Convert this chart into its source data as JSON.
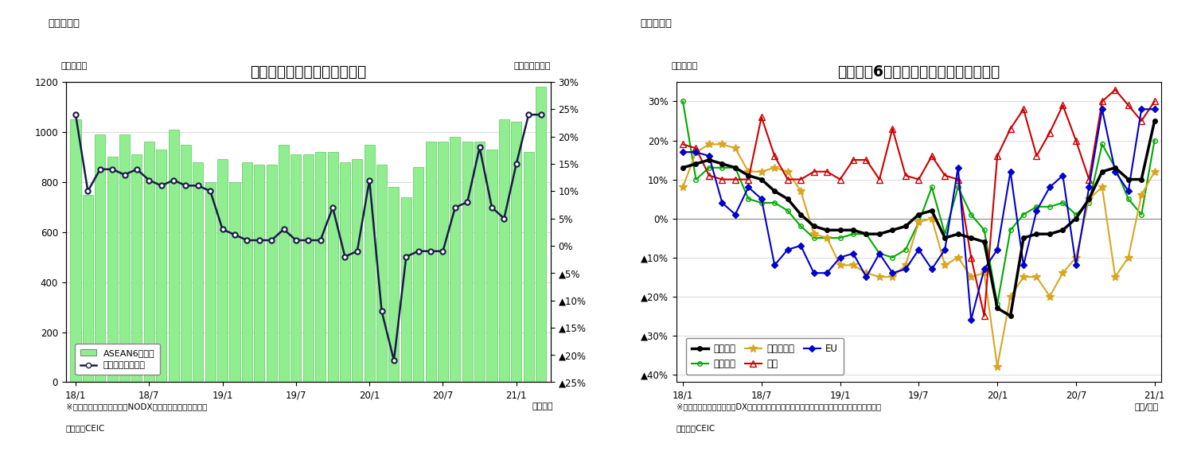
{
  "fig1": {
    "title": "アセアン主要６カ国の輸出額",
    "label_left": "（億ドル）",
    "label_right": "（前年同月比）",
    "header": "（図表１）",
    "note1": "※シンガポールの輸出額はNODX（石油と再輸出除く）。",
    "note2": "（資料）CEIC",
    "xlabel": "（年月）",
    "bar_color": "#90EE90",
    "bar_edge_color": "#5DC85D",
    "line_color": "#1a1a4a",
    "ylim_left": [
      0,
      1200
    ],
    "ylim_right": [
      -0.25,
      0.3
    ],
    "yticks_left": [
      0,
      200,
      400,
      600,
      800,
      1000,
      1200
    ],
    "yticks_right": [
      0.3,
      0.25,
      0.2,
      0.15,
      0.1,
      0.05,
      0.0,
      -0.05,
      -0.1,
      -0.15,
      -0.2,
      -0.25
    ],
    "ytick_labels_right": [
      "30%",
      "25%",
      "20%",
      "15%",
      "10%",
      "5%",
      "0%",
      "▲5%",
      "▲10%",
      "▲15%",
      "▲20%",
      "▲25%"
    ],
    "xtick_positions": [
      0,
      6,
      12,
      18,
      24,
      30,
      36
    ],
    "xtick_labels": [
      "18/1",
      "18/7",
      "19/1",
      "19/7",
      "20/1",
      "20/7",
      "21/1"
    ],
    "legend_bar": "ASEAN6カ国計",
    "legend_line": "増加率（右目盛）",
    "n_months": 39,
    "bar_values": [
      1050,
      750,
      990,
      900,
      990,
      910,
      960,
      930,
      1010,
      950,
      880,
      800,
      890,
      800,
      880,
      870,
      870,
      950,
      910,
      910,
      920,
      920,
      880,
      890,
      950,
      870,
      780,
      740,
      860,
      960,
      960,
      980,
      960,
      960,
      930,
      1050,
      1040,
      920,
      1180
    ],
    "line_values": [
      0.24,
      0.1,
      0.14,
      0.14,
      0.13,
      0.14,
      0.12,
      0.11,
      0.12,
      0.11,
      0.11,
      0.1,
      0.03,
      0.02,
      0.01,
      0.01,
      0.01,
      0.03,
      0.01,
      0.01,
      0.01,
      0.07,
      -0.02,
      -0.01,
      0.12,
      -0.12,
      -0.21,
      -0.02,
      -0.01,
      -0.01,
      -0.01,
      0.07,
      0.08,
      0.18,
      0.07,
      0.05,
      0.15,
      0.24,
      0.24
    ]
  },
  "fig2": {
    "title": "アセアン6カ国　仕向け地別の輸出動向",
    "label_left": "（前年比）",
    "header": "（図表２）",
    "note1": "※シンガポールの輸出額はDX（再輸出除く）、インドネシアは非石油輸出のデータを使用。",
    "note2": "（資料）CEIC",
    "xlabel": "（年/月）",
    "ylim": [
      -0.42,
      0.35
    ],
    "yticks": [
      0.3,
      0.2,
      0.1,
      0.0,
      -0.1,
      -0.2,
      -0.3,
      -0.4
    ],
    "ytick_labels": [
      "30%",
      "20%",
      "10%",
      "0%",
      "▲10%",
      "▲20%",
      "▲30%",
      "▲40%"
    ],
    "xtick_positions": [
      0,
      6,
      12,
      18,
      24,
      30,
      36
    ],
    "xtick_labels": [
      "18/1",
      "18/7",
      "19/1",
      "19/7",
      "20/1",
      "20/7",
      "21/1"
    ],
    "n_months": 37,
    "series": {
      "輸出全体": {
        "color": "#000000",
        "marker": "o",
        "linewidth": 2.5,
        "markersize": 4,
        "fillstyle": "full",
        "values": [
          0.13,
          0.14,
          0.15,
          0.14,
          0.13,
          0.11,
          0.1,
          0.07,
          0.05,
          0.01,
          -0.02,
          -0.03,
          -0.03,
          -0.03,
          -0.04,
          -0.04,
          -0.03,
          -0.02,
          0.01,
          0.02,
          -0.05,
          -0.04,
          -0.05,
          -0.06,
          -0.23,
          -0.25,
          -0.05,
          -0.04,
          -0.04,
          -0.03,
          0.0,
          0.05,
          0.12,
          0.13,
          0.1,
          0.1,
          0.25
        ]
      },
      "東アジア": {
        "color": "#00AA00",
        "marker": "o",
        "linewidth": 1.5,
        "markersize": 4,
        "fillstyle": "none",
        "values": [
          0.3,
          0.1,
          0.13,
          0.13,
          0.13,
          0.05,
          0.04,
          0.04,
          0.02,
          -0.02,
          -0.05,
          -0.05,
          -0.05,
          -0.04,
          -0.04,
          -0.09,
          -0.1,
          -0.08,
          -0.01,
          0.08,
          -0.04,
          0.08,
          0.01,
          -0.03,
          -0.22,
          -0.03,
          0.01,
          0.03,
          0.03,
          0.04,
          0.01,
          0.04,
          0.19,
          0.13,
          0.05,
          0.01,
          0.2
        ]
      },
      "東南アジア": {
        "color": "#DAA520",
        "marker": "*",
        "linewidth": 1.5,
        "markersize": 7,
        "fillstyle": "full",
        "values": [
          0.08,
          0.17,
          0.19,
          0.19,
          0.18,
          0.12,
          0.12,
          0.13,
          0.12,
          0.07,
          -0.04,
          -0.05,
          -0.12,
          -0.12,
          -0.14,
          -0.15,
          -0.15,
          -0.12,
          -0.01,
          0.0,
          -0.12,
          -0.1,
          -0.15,
          -0.14,
          -0.38,
          -0.2,
          -0.15,
          -0.15,
          -0.2,
          -0.14,
          -0.1,
          0.05,
          0.08,
          -0.15,
          -0.1,
          0.06,
          0.12
        ]
      },
      "北米": {
        "color": "#CC0000",
        "marker": "^",
        "linewidth": 1.5,
        "markersize": 6,
        "fillstyle": "none",
        "values": [
          0.19,
          0.18,
          0.11,
          0.1,
          0.1,
          0.1,
          0.26,
          0.16,
          0.1,
          0.1,
          0.12,
          0.12,
          0.1,
          0.15,
          0.15,
          0.1,
          0.23,
          0.11,
          0.1,
          0.16,
          0.11,
          0.1,
          -0.1,
          -0.25,
          0.16,
          0.23,
          0.28,
          0.16,
          0.22,
          0.29,
          0.2,
          0.1,
          0.3,
          0.33,
          0.29,
          0.25,
          0.3
        ]
      },
      "EU": {
        "color": "#0000CC",
        "marker": "D",
        "linewidth": 1.5,
        "markersize": 4,
        "fillstyle": "full",
        "values": [
          0.17,
          0.17,
          0.16,
          0.04,
          0.01,
          0.08,
          0.05,
          -0.12,
          -0.08,
          -0.07,
          -0.14,
          -0.14,
          -0.1,
          -0.09,
          -0.15,
          -0.09,
          -0.14,
          -0.13,
          -0.08,
          -0.13,
          -0.08,
          0.13,
          -0.26,
          -0.13,
          -0.08,
          0.12,
          -0.12,
          0.02,
          0.08,
          0.11,
          -0.12,
          0.08,
          0.28,
          0.12,
          0.07,
          0.28,
          0.28
        ]
      }
    }
  }
}
